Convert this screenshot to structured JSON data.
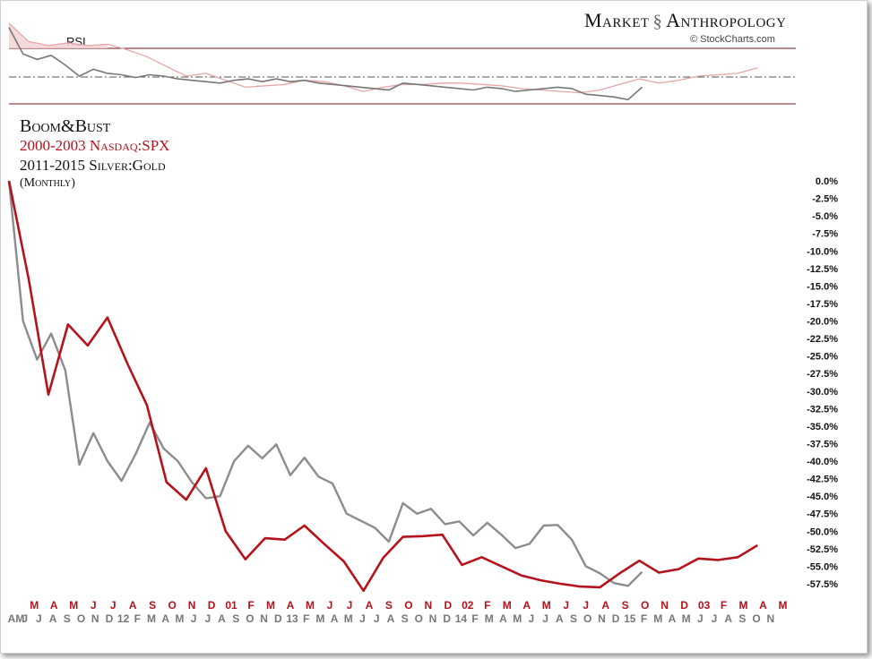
{
  "header": {
    "brand_left": "Market",
    "brand_right": "Anthropology",
    "credit": "© StockCharts.com"
  },
  "chart_title": {
    "main": "Boom&Bust",
    "series1": "2000-2003 Nasdaq:SPX",
    "series2": "2011-2015 Silver:Gold",
    "note": "(Monthly)"
  },
  "colors": {
    "series1": "#b5121b",
    "series2": "#8c8c8c",
    "rsi_series1": "#e8a6a6",
    "rsi_series2": "#777777"
  },
  "chart_data": [
    {
      "type": "line",
      "title": "Boom&Bust",
      "y_unit": "%",
      "ylim": [
        -58.5,
        0
      ],
      "y_ticks": [
        0.0,
        -2.5,
        -5.0,
        -7.5,
        -10.0,
        -12.5,
        -15.0,
        -17.5,
        -20.0,
        -22.5,
        -25.0,
        -27.5,
        -30.0,
        -32.5,
        -35.0,
        -37.5,
        -40.0,
        -42.5,
        -45.0,
        -47.5,
        -50.0,
        -52.5,
        -55.0,
        -57.5
      ],
      "y_tick_labels": [
        "0.0%",
        "-2.5%",
        "-5.0%",
        "-7.5%",
        "-10.0%",
        "-12.5%",
        "-15.0%",
        "-17.5%",
        "-20.0%",
        "-22.5%",
        "-25.0%",
        "-27.5%",
        "-30.0%",
        "-32.5%",
        "-35.0%",
        "-37.5%",
        "-40.0%",
        "-42.5%",
        "-45.0%",
        "-47.5%",
        "-50.0%",
        "-52.5%",
        "-55.0%",
        "-57.5%"
      ],
      "grid": false,
      "x_labels_series1": [
        "M",
        "A",
        "M",
        "J",
        "J",
        "A",
        "S",
        "O",
        "N",
        "D",
        "01",
        "F",
        "M",
        "A",
        "M",
        "J",
        "J",
        "A",
        "S",
        "O",
        "N",
        "D",
        "02",
        "F",
        "M",
        "A",
        "M",
        "J",
        "J",
        "A",
        "S",
        "O",
        "N",
        "D",
        "03",
        "F",
        "M",
        "A",
        "M"
      ],
      "x_labels_series2": [
        "AM",
        "J",
        "J",
        "A",
        "S",
        "O",
        "N",
        "D",
        "12",
        "F",
        "M",
        "A",
        "M",
        "J",
        "J",
        "A",
        "S",
        "O",
        "N",
        "D",
        "13",
        "F",
        "M",
        "A",
        "M",
        "J",
        "J",
        "A",
        "S",
        "O",
        "N",
        "D",
        "14",
        "F",
        "M",
        "A",
        "M",
        "J",
        "J",
        "A",
        "S",
        "O",
        "N",
        "D",
        "15",
        "F",
        "M",
        "A",
        "M",
        "J",
        "J",
        "A",
        "S",
        "O",
        "N"
      ],
      "series": [
        {
          "name": "2000-2003 Nasdaq:SPX",
          "x_start": 0,
          "x_step": 1.4,
          "values": [
            0.0,
            -14.0,
            -30.5,
            -20.5,
            -23.5,
            -19.5,
            -26.0,
            -32.0,
            -43.0,
            -45.5,
            -41.0,
            -50.0,
            -54.0,
            -51.0,
            -51.2,
            -49.2,
            -51.8,
            -54.3,
            -58.5,
            -53.8,
            -50.8,
            -50.7,
            -50.5,
            -54.8,
            -53.7,
            -55.0,
            -56.3,
            -57.0,
            -57.5,
            -57.9,
            -58.0,
            -56.0,
            -54.2,
            -55.9,
            -55.4,
            -53.9,
            -54.1,
            -53.7,
            -52.0
          ]
        },
        {
          "name": "2011-2015 Silver:Gold",
          "x_start": 0,
          "x_step": 1,
          "values": [
            0.0,
            -20.0,
            -25.5,
            -21.8,
            -27.0,
            -40.5,
            -36.0,
            -40.0,
            -42.8,
            -39.0,
            -34.5,
            -38.2,
            -40.0,
            -43.0,
            -45.3,
            -45.0,
            -40.0,
            -37.8,
            -39.6,
            -37.6,
            -42.0,
            -39.5,
            -42.2,
            -43.2,
            -47.5,
            -48.5,
            -49.5,
            -51.5,
            -46.0,
            -47.5,
            -46.8,
            -49.0,
            -48.6,
            -50.6,
            -48.8,
            -50.5,
            -52.4,
            -51.8,
            -49.2,
            -49.1,
            -51.2,
            -55.0,
            -56.0,
            -57.4,
            -57.8,
            -55.8
          ]
        }
      ]
    },
    {
      "type": "line",
      "title": "RSI",
      "ylim": [
        10,
        90
      ],
      "reference_lines": [
        70,
        50,
        30
      ],
      "series": [
        {
          "name": "2000-2003 Nasdaq:SPX",
          "x_start": 0,
          "x_step": 1.4,
          "values": [
            88,
            75,
            72,
            74,
            72,
            73,
            69,
            64,
            57,
            50,
            52,
            47,
            42,
            43,
            44,
            47,
            46,
            43,
            39,
            42,
            44,
            44,
            45,
            45,
            44,
            43,
            41,
            40,
            39,
            38,
            40,
            44,
            48,
            45,
            47,
            50,
            51,
            52,
            56
          ]
        },
        {
          "name": "2011-2015 Silver:Gold",
          "x_start": 0,
          "x_step": 1,
          "values": [
            85,
            66,
            62,
            65,
            58,
            50,
            55,
            52,
            51,
            49,
            51,
            50,
            48,
            47,
            46,
            45,
            47,
            48,
            46,
            48,
            46,
            47,
            45,
            44,
            43,
            42,
            41,
            40,
            45,
            44,
            43,
            42,
            41,
            40,
            42,
            41,
            39,
            40,
            41,
            42,
            41,
            37,
            36,
            35,
            33,
            42
          ]
        }
      ]
    }
  ]
}
